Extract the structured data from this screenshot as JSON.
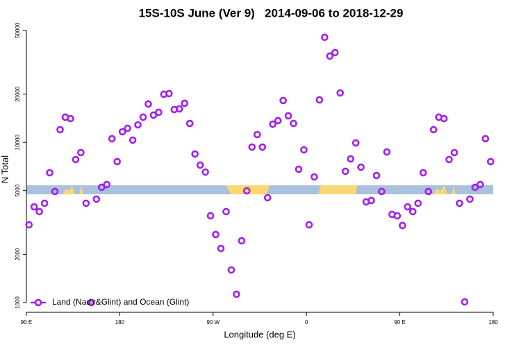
{
  "chart_data": {
    "type": "scatter",
    "title": "15S-10S June (Ver 9)   2014-09-06 to 2018-12-29",
    "x_label": "Longitude (deg E)",
    "y_label": "N Total",
    "log_y": true,
    "legend": "bottomleft",
    "xlim": [
      90,
      540
    ],
    "ylim": [
      870,
      53000
    ],
    "xticks": [
      {
        "value": 90,
        "label": "90 E"
      },
      180,
      {
        "value": 270,
        "label": "90 W"
      },
      {
        "value": 360,
        "label": "0"
      },
      {
        "value": 450,
        "label": "90 E"
      },
      {
        "value": 540,
        "label": "180"
      }
    ],
    "yticks": [
      1000,
      2000,
      5000,
      10000,
      20000,
      50000
    ],
    "series": [
      {
        "name": "Land (Nadir&Glint) and Ocean (Glint)",
        "color": "#a020f0",
        "x": [
          92.5,
          97.5,
          102.5,
          107.5,
          112.5,
          117.5,
          122.5,
          127.5,
          132.5,
          137.5,
          142.5,
          147.5,
          152.5,
          157.5,
          162.5,
          167.5,
          172.5,
          177.5,
          182.5,
          187.5,
          192.5,
          197.5,
          202.5,
          207.5,
          212.5,
          217.5,
          222.5,
          227.5,
          232.5,
          237.5,
          242.5,
          247.5,
          252.5,
          257.5,
          262.5,
          267.5,
          272.5,
          277.5,
          282.5,
          287.5,
          292.5,
          297.5,
          302.5,
          307.5,
          312.5,
          317.5,
          322.5,
          327.5,
          332.5,
          337.5,
          342.5,
          347.5,
          352.5,
          357.5,
          362.5,
          367.5,
          372.5,
          377.5,
          382.5,
          387.5,
          392.5,
          397.5,
          402.5,
          407.5,
          412.5,
          417.5,
          422.5,
          427.5,
          432.5,
          437.5,
          442.5,
          447.5,
          452.5,
          457.5,
          462.5,
          467.5,
          472.5,
          477.5,
          482.5,
          487.5,
          492.5,
          497.5,
          502.5,
          507.5,
          512.5,
          517.5,
          522.5,
          527.5,
          532.5,
          537.5
        ],
        "values": [
          3059,
          3963,
          3698,
          4168,
          6465,
          4937,
          12003,
          14370,
          14080,
          7814,
          8638,
          4168,
          1000,
          4425,
          5243,
          5457,
          10543,
          7586,
          11650,
          12246,
          10335,
          12874,
          14370,
          17370,
          14805,
          15410,
          19970,
          20170,
          16030,
          16200,
          17540,
          13130,
          8465,
          7216,
          6529,
          3482,
          2660,
          2178,
          3698,
          1598,
          1127,
          2431,
          4987,
          9354,
          11194,
          9354,
          4514,
          13000,
          13670,
          18250,
          14660,
          13130,
          6797,
          8987,
          3059,
          6090,
          18440,
          45270,
          34580,
          36350,
          20370,
          6595,
          7895,
          9931,
          7004,
          4252,
          4337,
          6212,
          4937,
          8721,
          3552,
          3482,
          3028,
          3963,
          3698,
          4168,
          6465,
          4937,
          12003,
          14370,
          14080,
          7814,
          8638,
          4168,
          1010,
          4425,
          5243,
          5457,
          10543,
          7586
        ]
      }
    ]
  }
}
